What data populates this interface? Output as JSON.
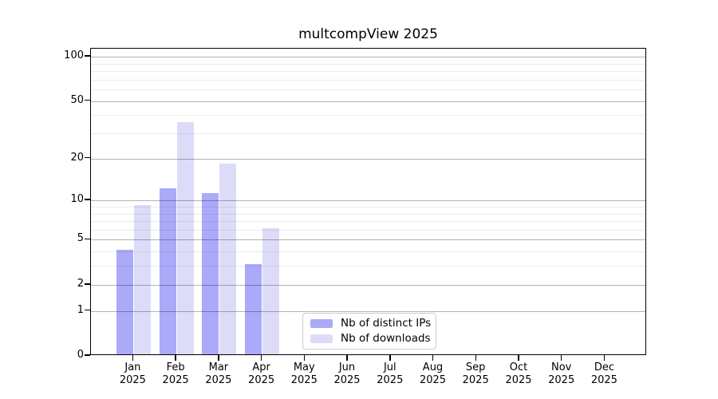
{
  "title": "multcompView 2025",
  "chart_data": {
    "type": "bar",
    "title": "multcompView 2025",
    "y_scale": "log1p",
    "grid": "on",
    "legend_position": "bottom-center",
    "categories": [
      "Jan",
      "Feb",
      "Mar",
      "Apr",
      "May",
      "Jun",
      "Jul",
      "Aug",
      "Sep",
      "Oct",
      "Nov",
      "Dec"
    ],
    "x_year_label": "2025",
    "series": [
      {
        "name": "Nb of distinct IPs",
        "color": "#aaaaf8",
        "values": [
          4,
          12,
          11,
          3,
          0,
          0,
          0,
          0,
          0,
          0,
          0,
          0
        ]
      },
      {
        "name": "Nb of downloads",
        "color": "#dcdcf9",
        "values": [
          9,
          35,
          18,
          6,
          0,
          0,
          0,
          0,
          0,
          0,
          0,
          0
        ]
      }
    ],
    "y_ticks": [
      0,
      1,
      2,
      5,
      10,
      20,
      50,
      100
    ],
    "y_minor_gridlines": [
      3,
      4,
      6,
      7,
      8,
      9,
      30,
      40,
      60,
      70,
      80,
      90
    ],
    "ylim": [
      0,
      113
    ]
  },
  "legend": {
    "items": [
      {
        "label": "Nb of distinct IPs",
        "color": "#aaaaf8"
      },
      {
        "label": "Nb of downloads",
        "color": "#dcdcf9"
      }
    ]
  },
  "colors": {
    "bar_distinct_ips": "#aaaaf8",
    "bar_downloads": "#dcdcf9",
    "grid_major": "#b0b0b0",
    "grid_minor": "#ececec",
    "axis": "#000000",
    "legend_border": "#cccccc",
    "background": "#ffffff"
  }
}
